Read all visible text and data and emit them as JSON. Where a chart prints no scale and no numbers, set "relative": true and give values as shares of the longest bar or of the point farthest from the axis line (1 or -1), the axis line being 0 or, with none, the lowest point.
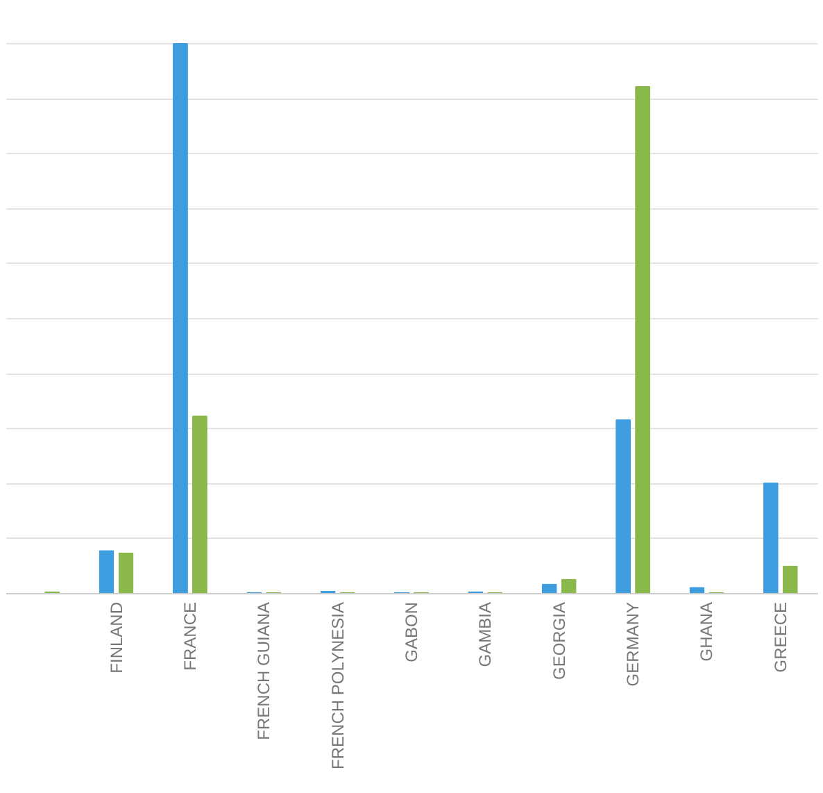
{
  "chart_data": {
    "type": "bar",
    "relative": true,
    "grid": "y",
    "categories": [
      null,
      "FINLAND",
      "FRANCE",
      "FRENCH GUIANA",
      "FRENCH POLYNESIA",
      "GABON",
      "GAMBIA",
      "GEORGIA",
      "GERMANY",
      "GHANA",
      "GREECE"
    ],
    "series": [
      {
        "color": "#3d9ddf",
        "values": [
          0,
          0.078,
          1,
          0.002,
          0.004,
          0.002,
          0.003,
          0.017,
          0.316,
          0.011,
          0.201
        ]
      },
      {
        "color": "#8ab84a",
        "values": [
          0.003,
          0.074,
          0.323,
          0.002,
          0.002,
          0.002,
          0.002,
          0.026,
          0.922,
          0.002,
          0.05
        ]
      }
    ]
  }
}
